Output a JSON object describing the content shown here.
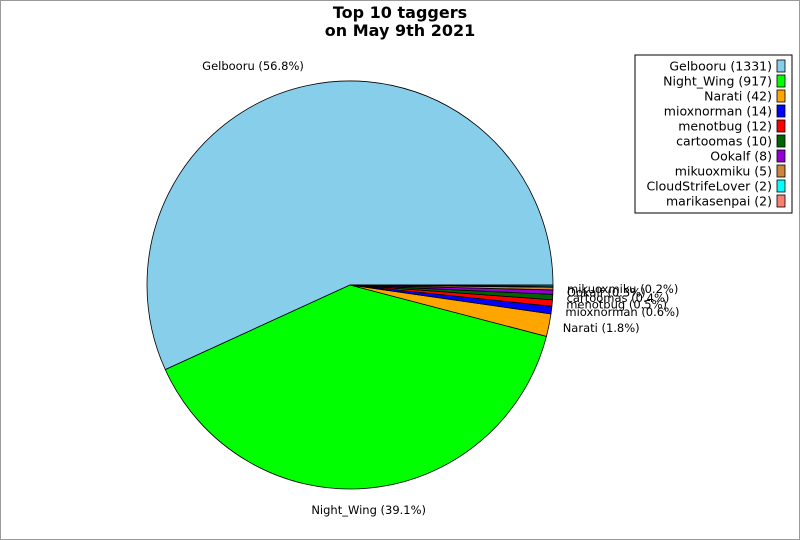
{
  "chart_data": {
    "type": "pie",
    "title_lines": [
      "Top 10 taggers",
      "on May 9th 2021"
    ],
    "legend_position": "top-right",
    "slices": [
      {
        "name": "Gelbooru",
        "value": 1331,
        "color": "#87ceeb",
        "label": "Gelbooru (56.8%)",
        "legend": "Gelbooru (1331)"
      },
      {
        "name": "Night_Wing",
        "value": 917,
        "color": "#00ff00",
        "label": "Night_Wing (39.1%)",
        "legend": "Night_Wing (917)"
      },
      {
        "name": "Narati",
        "value": 42,
        "color": "#ffa500",
        "label": "Narati (1.8%)",
        "legend": "Narati (42)"
      },
      {
        "name": "mioxnorman",
        "value": 14,
        "color": "#0000ff",
        "label": "mioxnorman (0.6%)",
        "legend": "mioxnorman (14)"
      },
      {
        "name": "menotbug",
        "value": 12,
        "color": "#ff0000",
        "label": "menotbug (0.5%)",
        "legend": "menotbug (12)"
      },
      {
        "name": "cartoomas",
        "value": 10,
        "color": "#006400",
        "label": "cartoomas (0.4%)",
        "legend": "cartoomas (10)"
      },
      {
        "name": "Ookalf",
        "value": 8,
        "color": "#9400d3",
        "label": "Ookalf (0.3%)",
        "legend": "Ookalf (8)"
      },
      {
        "name": "mikuoxmiku",
        "value": 5,
        "color": "#cd853f",
        "label": "mikuoxmiku (0.2%)",
        "legend": "mikuoxmiku (5)"
      },
      {
        "name": "CloudStrifeLover",
        "value": 2,
        "color": "#00ffff",
        "label": "",
        "legend": "CloudStrifeLover (2)"
      },
      {
        "name": "marikasenpai",
        "value": 2,
        "color": "#fa8072",
        "label": "",
        "legend": "marikasenpai (2)"
      }
    ]
  }
}
